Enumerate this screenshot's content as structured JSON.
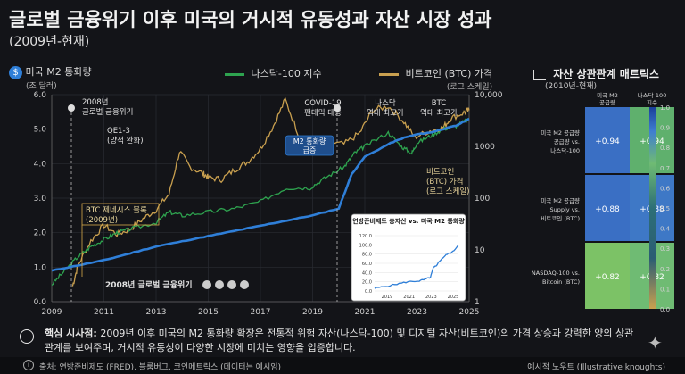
{
  "title": "글로벌 금융위기 이후 미국의 거시적 유동성과 자산 시장 성과",
  "subtitle": "(2009년-현재)",
  "legend": {
    "m2_label": "미국 M2 통화량",
    "m2_unit": "(조 달러)",
    "nasdaq_label": "나스닥-100 지수",
    "btc_label": "비트코인 (BTC) 가격",
    "btc_unit": "(로그 스케일)"
  },
  "colors": {
    "m2": "#2f7fd8",
    "nasdaq": "#2ea34f",
    "btc": "#c9a04f",
    "accent": "#d8a94a"
  },
  "chart_data": [
    {
      "type": "line",
      "x_range": [
        2009,
        2025
      ],
      "x_ticks": [
        "2009",
        "2011",
        "2013",
        "2015",
        "2017",
        "2019",
        "2021",
        "2023",
        "2025"
      ],
      "left_axis": {
        "range": [
          0,
          6.0
        ],
        "ticks": [
          "0.0",
          "1.0",
          "2.0",
          "3.0",
          "4.0",
          "5.0",
          "6.0"
        ]
      },
      "right_axis": {
        "scale": "log",
        "range": [
          1,
          10000
        ],
        "ticks": [
          "1",
          "10",
          "100",
          "1000",
          "10,000"
        ]
      },
      "series": [
        {
          "name": "미국 M2 통화량",
          "axis": "left",
          "x": [
            2009,
            2010,
            2011,
            2012,
            2013,
            2014,
            2015,
            2016,
            2017,
            2018,
            2019,
            2020,
            2020.5,
            2021,
            2022,
            2022.5,
            2023,
            2023.5,
            2024,
            2024.5,
            2025
          ],
          "y": [
            0.9,
            1.05,
            1.2,
            1.4,
            1.6,
            1.75,
            1.9,
            2.05,
            2.2,
            2.35,
            2.5,
            2.7,
            3.7,
            4.2,
            4.6,
            4.75,
            4.85,
            4.9,
            5.0,
            5.1,
            5.3
          ]
        },
        {
          "name": "나스닥-100 지수",
          "axis": "left",
          "x": [
            2009,
            2009.5,
            2010,
            2010.5,
            2011,
            2011.5,
            2012,
            2013,
            2013.5,
            2014,
            2015,
            2016,
            2017,
            2018,
            2018.9,
            2019.5,
            2020.2,
            2020.6,
            2021,
            2021.9,
            2022.4,
            2022.8,
            2023,
            2023.5,
            2024,
            2024.5,
            2025
          ],
          "y": [
            0.5,
            0.9,
            1.3,
            1.6,
            1.8,
            2.0,
            2.1,
            2.3,
            2.6,
            2.5,
            2.6,
            2.7,
            2.9,
            3.3,
            3.3,
            3.6,
            3.9,
            4.3,
            4.5,
            4.9,
            4.5,
            4.3,
            4.6,
            4.8,
            5.0,
            5.1,
            5.3
          ]
        }
      ]
    },
    {
      "type": "line",
      "series": [
        {
          "name": "비트코인 (BTC) 가격",
          "axis": "right",
          "x": [
            2009.8,
            2010,
            2010.5,
            2011,
            2011.5,
            2012,
            2012.5,
            2013,
            2013.5,
            2013.9,
            2014.3,
            2014.8,
            2015,
            2015.5,
            2016,
            2016.5,
            2017,
            2017.5,
            2017.95,
            2018.5,
            2018.95,
            2019.5,
            2020.2,
            2020.8,
            2021.3,
            2021.9,
            2022.5,
            2022.9,
            2023.5,
            2024,
            2024.3,
            2024.8,
            2025
          ],
          "y": [
            2,
            5,
            15,
            30,
            20,
            25,
            40,
            60,
            120,
            800,
            400,
            300,
            250,
            230,
            350,
            500,
            900,
            2500,
            8000,
            1500,
            900,
            1200,
            1100,
            1800,
            5000,
            6000,
            3000,
            1500,
            2000,
            2300,
            3500,
            4500,
            5000
          ]
        }
      ]
    },
    {
      "type": "line",
      "title": "연방준비제도 총자산 vs. 미국 M2 통화량",
      "x_ticks": [
        "2019",
        "2021",
        "2023",
        "2025"
      ],
      "y_ticks": [
        "120.0",
        "100.0",
        "80.0",
        "60.0",
        "40.0",
        "20.0",
        "0.0"
      ],
      "series": [
        {
          "axis": "left",
          "x": [
            2010,
            2012,
            2014,
            2016,
            2018,
            2019,
            2020,
            2020.5,
            2021,
            2022,
            2023,
            2024,
            2025
          ],
          "y": [
            6,
            10,
            15,
            20,
            22,
            25,
            30,
            50,
            55,
            70,
            80,
            85,
            100
          ]
        }
      ]
    },
    {
      "type": "heatmap",
      "title": "자산 상관관계 매트릭스",
      "subtitle": "(2010년-현재)",
      "col_labels": [
        "미국 M2 공급량",
        "나스닥-100 지수"
      ],
      "rows": [
        {
          "label": "미국 M2 공급량 공급량 vs. 나스닥-100",
          "values": [
            0.94,
            0.94
          ],
          "display": [
            "+0.94",
            "+0.94"
          ]
        },
        {
          "label": "미국 M2 공급량 Supply vs. 비트코인 (BTC)",
          "values": [
            0.88,
            0.88
          ],
          "display": [
            "+0.88",
            "+0.88"
          ]
        },
        {
          "label": "NASDAQ-100 vs. Bitcoin (BTC)",
          "values": [
            0.82,
            0.82
          ],
          "display": [
            "+0.82",
            "+0.82"
          ]
        }
      ],
      "colorbar_ticks": [
        "1.0",
        "0.9",
        "0.8",
        "0.7",
        "0.6",
        "0.5",
        "0.4",
        "0.3",
        "0.2",
        "0.1",
        "0.0"
      ]
    }
  ],
  "annotations": {
    "gfc_year": "2008년",
    "gfc_label": "글로벌 금융위기",
    "qe_label": "QE1-3",
    "qe_sub": "(양적 완화)",
    "btc_genesis": "BTC 제네시스 블록",
    "btc_genesis_year": "(2009년)",
    "covid_label": "COVID-19",
    "covid_sub": "팬데믹 대응",
    "nasdaq_ath": "나스닥",
    "nasdaq_ath_sub": "역대 최고가",
    "btc_ath": "BTC",
    "btc_ath_sub": "역대 최고가",
    "m2_callout": "M2 통화량",
    "m2_callout_sub": "급증",
    "btc_right_1": "비트코인",
    "btc_right_2": "(BTC) 가격",
    "btc_right_3": "(로그 스케일)",
    "gfc_bottom": "2008년 글로벌 금융위기"
  },
  "insight": {
    "lead": "핵심 시사점:",
    "text": "2009년 이후 미국의 M2 통화량 확장은 전통적 위험 자산(나스닥-100) 및 디지털 자산(비트코인)의 가격 상승과 강력한 양의 상관관계를 보여주며, 거시적 유동성이 다양한 시장에 미치는 영향을 입증합니다."
  },
  "footer": {
    "source": "출처: 연방준비제도 (FRED), 블룸버그, 코인메트릭스 (데이터는 예시임)",
    "brand": "예시적 노우트 (Illustrative knoughts)"
  }
}
